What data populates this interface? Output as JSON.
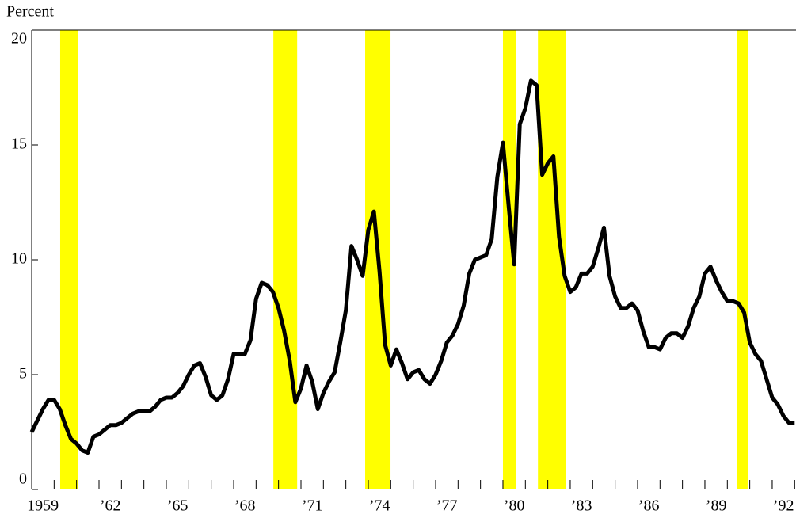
{
  "chart_data": {
    "type": "line",
    "y_axis_label": "Percent",
    "xlim": [
      1959,
      1993.06
    ],
    "ylim": [
      0,
      20
    ],
    "yticks": [
      0,
      5,
      10,
      15,
      20
    ],
    "xticks": [
      {
        "value": 1959,
        "label": "1959"
      },
      {
        "value": 1962,
        "label": "’62"
      },
      {
        "value": 1965,
        "label": "’65"
      },
      {
        "value": 1968,
        "label": "’68"
      },
      {
        "value": 1971,
        "label": "’71"
      },
      {
        "value": 1974,
        "label": "’74"
      },
      {
        "value": 1977,
        "label": "’77"
      },
      {
        "value": 1980,
        "label": "’80"
      },
      {
        "value": 1983,
        "label": "’83"
      },
      {
        "value": 1986,
        "label": "’86"
      },
      {
        "value": 1989,
        "label": "’89"
      },
      {
        "value": 1992,
        "label": "’92"
      }
    ],
    "xminor_ticks": [
      1960,
      1961,
      1962,
      1963,
      1964,
      1965,
      1966,
      1967,
      1968,
      1969,
      1970,
      1971,
      1972,
      1973,
      1974,
      1975,
      1976,
      1977,
      1978,
      1979,
      1980,
      1981,
      1982,
      1983,
      1984,
      1985,
      1986,
      1987,
      1988,
      1989,
      1990,
      1991,
      1992,
      1993
    ],
    "shaded_periods": [
      [
        1960.27,
        1961.05
      ],
      [
        1969.77,
        1970.83
      ],
      [
        1973.86,
        1974.99
      ],
      [
        1980.0,
        1980.57
      ],
      [
        1981.56,
        1982.79
      ],
      [
        1990.42,
        1990.94
      ]
    ],
    "shade_color": "#ffff00",
    "color": "#000000",
    "x": [
      1959,
      1959.25,
      1959.5,
      1959.75,
      1960,
      1960.25,
      1960.5,
      1960.75,
      1961,
      1961.25,
      1961.5,
      1961.75,
      1962,
      1962.25,
      1962.5,
      1962.75,
      1963,
      1963.25,
      1963.5,
      1963.75,
      1964,
      1964.25,
      1964.5,
      1964.75,
      1965,
      1965.25,
      1965.5,
      1965.75,
      1966,
      1966.25,
      1966.5,
      1966.75,
      1967,
      1967.25,
      1967.5,
      1967.75,
      1968,
      1968.25,
      1968.5,
      1968.75,
      1969,
      1969.25,
      1969.5,
      1969.75,
      1970,
      1970.25,
      1970.5,
      1970.75,
      1971,
      1971.25,
      1971.5,
      1971.75,
      1972,
      1972.25,
      1972.5,
      1972.75,
      1973,
      1973.25,
      1973.5,
      1973.75,
      1974,
      1974.25,
      1974.5,
      1974.75,
      1975,
      1975.25,
      1975.5,
      1975.75,
      1976,
      1976.25,
      1976.5,
      1976.75,
      1977,
      1977.25,
      1977.5,
      1977.75,
      1978,
      1978.25,
      1978.5,
      1978.75,
      1979,
      1979.25,
      1979.5,
      1979.75,
      1980,
      1980.25,
      1980.5,
      1980.75,
      1981,
      1981.25,
      1981.5,
      1981.75,
      1982,
      1982.25,
      1982.5,
      1982.75,
      1983,
      1983.25,
      1983.5,
      1983.75,
      1984,
      1984.25,
      1984.5,
      1984.75,
      1985,
      1985.25,
      1985.5,
      1985.75,
      1986,
      1986.25,
      1986.5,
      1986.75,
      1987,
      1987.25,
      1987.5,
      1987.75,
      1988,
      1988.25,
      1988.5,
      1988.75,
      1989,
      1989.25,
      1989.5,
      1989.75,
      1990,
      1990.25,
      1990.5,
      1990.75,
      1991,
      1991.25,
      1991.5,
      1991.75,
      1992,
      1992.25,
      1992.5,
      1992.75,
      1993
    ],
    "values": [
      2.5,
      3.0,
      3.5,
      3.9,
      3.9,
      3.5,
      2.8,
      2.2,
      2.0,
      1.7,
      1.6,
      2.3,
      2.4,
      2.6,
      2.8,
      2.8,
      2.9,
      3.1,
      3.3,
      3.4,
      3.4,
      3.4,
      3.6,
      3.9,
      4.0,
      4.0,
      4.2,
      4.5,
      5.0,
      5.4,
      5.5,
      4.9,
      4.1,
      3.9,
      4.1,
      4.8,
      5.9,
      5.9,
      5.9,
      6.5,
      8.3,
      9.0,
      8.9,
      8.6,
      7.9,
      6.9,
      5.6,
      3.8,
      4.4,
      5.4,
      4.7,
      3.5,
      4.2,
      4.7,
      5.1,
      6.4,
      7.8,
      10.6,
      10.0,
      9.3,
      11.3,
      12.1,
      9.5,
      6.3,
      5.4,
      6.1,
      5.5,
      4.8,
      5.1,
      5.2,
      4.8,
      4.6,
      5.0,
      5.6,
      6.4,
      6.7,
      7.2,
      8.0,
      9.4,
      10.0,
      10.1,
      10.2,
      10.9,
      13.6,
      15.1,
      12.4,
      9.8,
      15.9,
      16.6,
      17.8,
      17.6,
      13.7,
      14.2,
      14.5,
      11.0,
      9.3,
      8.6,
      8.8,
      9.4,
      9.4,
      9.7,
      10.5,
      11.4,
      9.3,
      8.4,
      7.9,
      7.9,
      8.1,
      7.8,
      6.9,
      6.2,
      6.2,
      6.1,
      6.6,
      6.8,
      6.8,
      6.6,
      7.1,
      7.9,
      8.4,
      9.4,
      9.7,
      9.1,
      8.6,
      8.2,
      8.2,
      8.1,
      7.7,
      6.4,
      5.9,
      5.6,
      4.8,
      4.0,
      3.7,
      3.2,
      2.9,
      2.9
    ]
  }
}
